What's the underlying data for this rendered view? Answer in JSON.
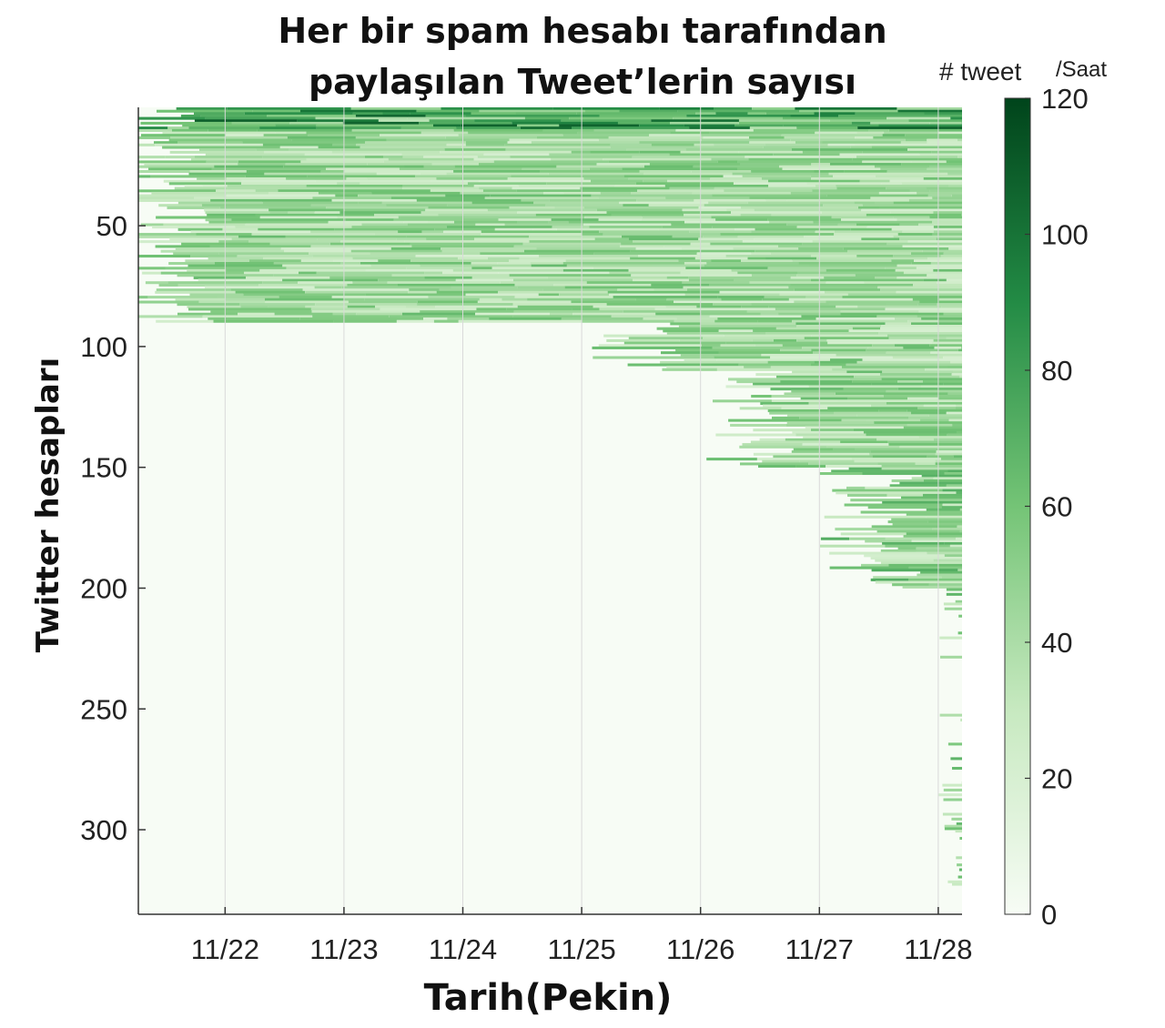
{
  "chart_data": {
    "type": "heatmap",
    "title_lines": [
      "Her bir spam hesabı tarafından",
      "paylaşılan Tweet’lerin sayısı"
    ],
    "xlabel": "Tarih(Pekin)",
    "ylabel": "Twitter hesapları",
    "x_ticks": [
      "11/22",
      "11/23",
      "11/24",
      "11/25",
      "11/26",
      "11/27",
      "11/28"
    ],
    "x_range_days": [
      21.27,
      28.2
    ],
    "y_ticks": [
      50,
      100,
      150,
      200,
      250,
      300
    ],
    "y_range": [
      1,
      335
    ],
    "colorbar": {
      "unit_main": "# tweet",
      "unit_sub": "/Saat",
      "ticks": [
        0,
        20,
        40,
        60,
        80,
        100,
        120
      ],
      "range": [
        0,
        120
      ],
      "colors": [
        "#f7fcf5",
        "#c7e9c0",
        "#74c476",
        "#238b45",
        "#00441b"
      ]
    },
    "grid": true,
    "account_activity": [
      {
        "from_account": 1,
        "to_account": 10,
        "active_from": "11/21",
        "typical_tweets_per_hour": 75
      },
      {
        "from_account": 10,
        "to_account": 90,
        "active_from": "11/21",
        "typical_tweets_per_hour": 45
      },
      {
        "from_account": 90,
        "to_account": 110,
        "active_from": "11/25",
        "typical_tweets_per_hour": 45
      },
      {
        "from_account": 110,
        "to_account": 150,
        "active_from": "11/26",
        "typical_tweets_per_hour": 45
      },
      {
        "from_account": 150,
        "to_account": 200,
        "active_from": "11/27",
        "typical_tweets_per_hour": 50
      },
      {
        "from_account": 200,
        "to_account": 335,
        "active_from": "11/28",
        "typical_tweets_per_hour": 50
      }
    ]
  }
}
